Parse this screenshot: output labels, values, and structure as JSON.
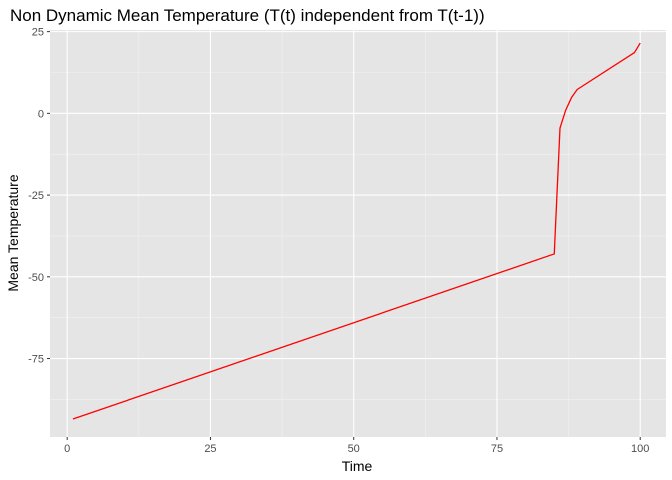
{
  "chart_data": {
    "type": "line",
    "title": "Non Dynamic Mean Temperature (T(t) independent from T(t-1))",
    "xlabel": "Time",
    "ylabel": "Mean Temperature",
    "xlim": [
      -3,
      104.5
    ],
    "ylim": [
      -99,
      25.5
    ],
    "x_ticks": [
      0,
      25,
      50,
      75,
      100
    ],
    "y_ticks": [
      25,
      0,
      -25,
      -50,
      -75
    ],
    "x_tick_labels": [
      "0",
      "25",
      "50",
      "75",
      "100"
    ],
    "y_tick_labels": [
      "25",
      "0",
      "-25",
      "-50",
      "-75"
    ],
    "grid": true,
    "series": [
      {
        "color": "#ff0000",
        "x": [
          1,
          85,
          86,
          87,
          88,
          89,
          99,
          100
        ],
        "y": [
          -93.5,
          -43,
          -4.5,
          1,
          4.8,
          7.3,
          18.6,
          21.5
        ]
      }
    ]
  },
  "colors": {
    "panel_background": "#e5e5e5",
    "grid_major": "#ffffff",
    "line": "#ff0000"
  }
}
